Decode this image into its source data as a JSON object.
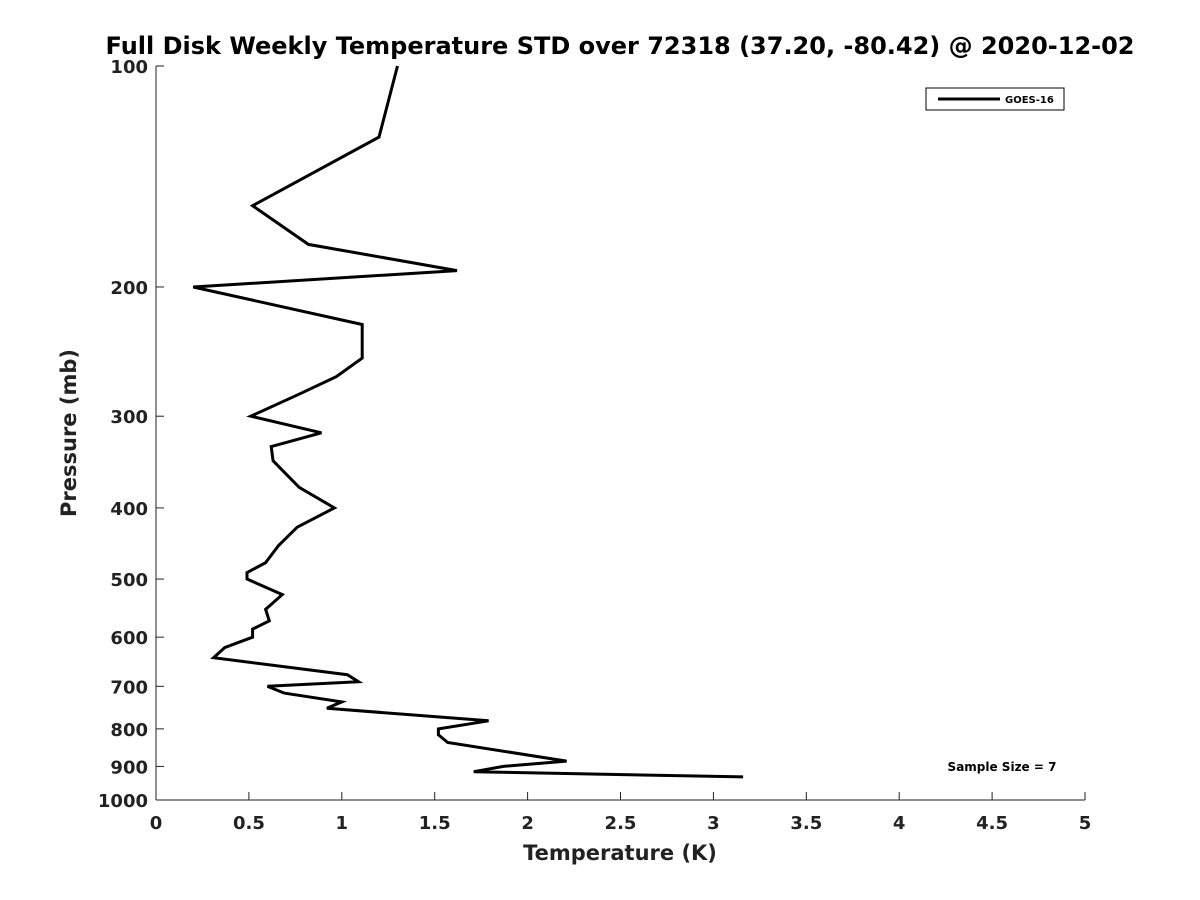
{
  "chart_data": {
    "type": "line",
    "title": "Full Disk Weekly Temperature STD over 72318 (37.20, -80.42) @ 2020-12-02",
    "xlabel": "Temperature (K)",
    "ylabel": "Pressure (mb)",
    "xlim": [
      0,
      5
    ],
    "ylim": [
      100,
      1000
    ],
    "y_scale": "log",
    "y_reversed": true,
    "grid": false,
    "legend_position": "top-right",
    "x_ticks": [
      "0",
      "0.5",
      "1",
      "1.5",
      "2",
      "2.5",
      "3",
      "3.5",
      "4",
      "4.5",
      "5"
    ],
    "y_ticks": [
      "100",
      "200",
      "300",
      "400",
      "500",
      "600",
      "700",
      "800",
      "900",
      "1000"
    ],
    "annotation": "Sample Size = 7",
    "series": [
      {
        "name": "GOES-16",
        "color": "#000000",
        "points": [
          [
            1.3,
            100
          ],
          [
            1.2,
            125
          ],
          [
            0.52,
            155
          ],
          [
            0.82,
            175
          ],
          [
            1.62,
            190
          ],
          [
            0.2,
            200
          ],
          [
            1.11,
            225
          ],
          [
            1.11,
            250
          ],
          [
            0.97,
            265
          ],
          [
            0.77,
            280
          ],
          [
            0.51,
            300
          ],
          [
            0.89,
            316
          ],
          [
            0.62,
            330
          ],
          [
            0.63,
            345
          ],
          [
            0.77,
            375
          ],
          [
            0.96,
            400
          ],
          [
            0.76,
            425
          ],
          [
            0.66,
            450
          ],
          [
            0.59,
            475
          ],
          [
            0.49,
            490
          ],
          [
            0.49,
            500
          ],
          [
            0.68,
            525
          ],
          [
            0.59,
            550
          ],
          [
            0.61,
            570
          ],
          [
            0.52,
            585
          ],
          [
            0.52,
            600
          ],
          [
            0.37,
            620
          ],
          [
            0.31,
            640
          ],
          [
            1.03,
            675
          ],
          [
            1.09,
            690
          ],
          [
            0.6,
            700
          ],
          [
            0.69,
            715
          ],
          [
            1.0,
            735
          ],
          [
            0.92,
            750
          ],
          [
            1.79,
            780
          ],
          [
            1.52,
            800
          ],
          [
            1.52,
            815
          ],
          [
            1.57,
            835
          ],
          [
            2.21,
            885
          ],
          [
            1.87,
            900
          ],
          [
            1.71,
            915
          ],
          [
            3.16,
            930
          ]
        ]
      }
    ]
  }
}
